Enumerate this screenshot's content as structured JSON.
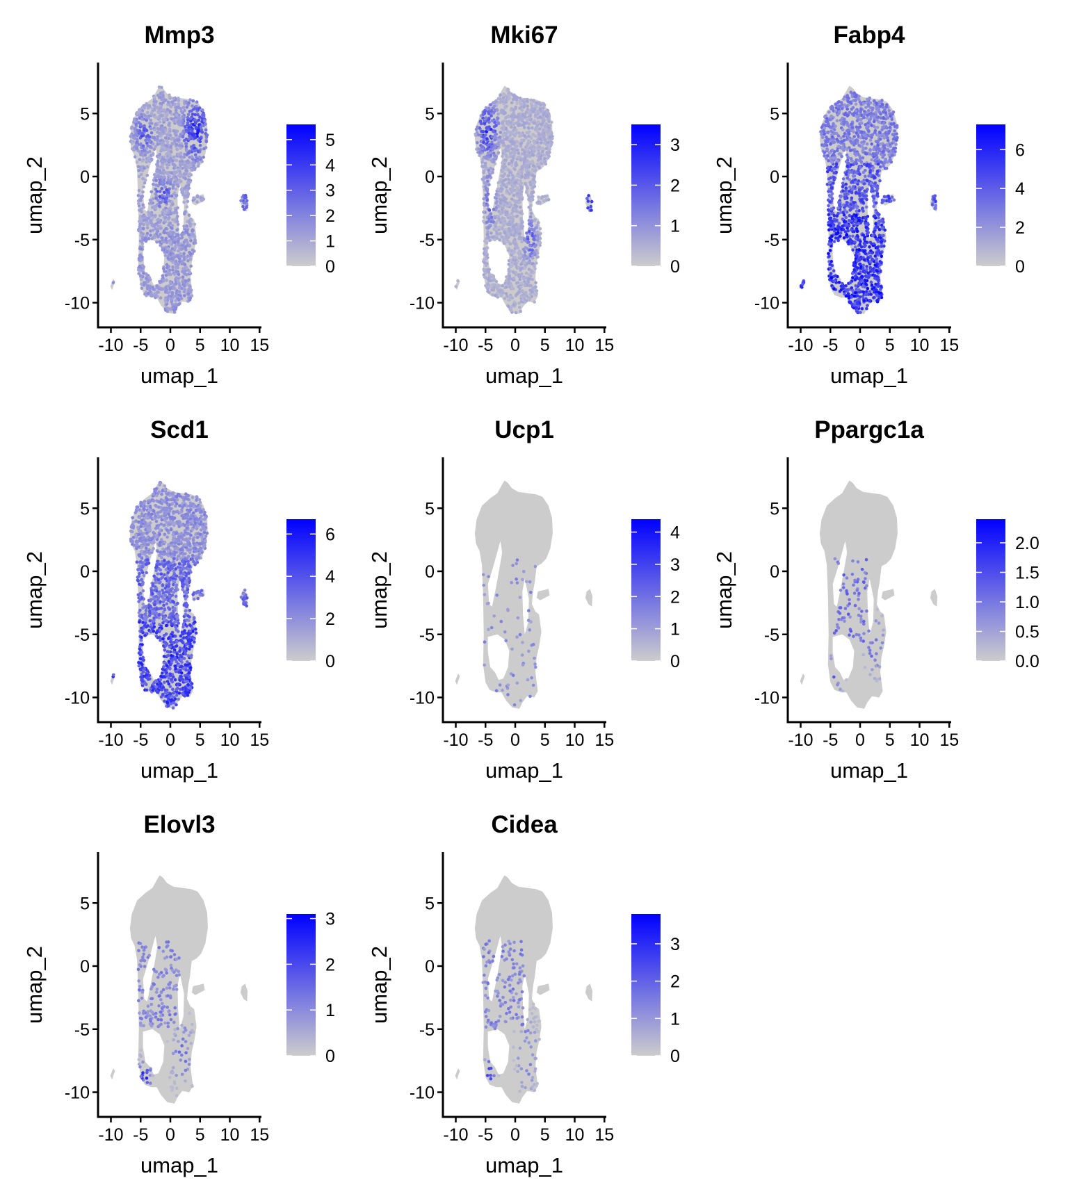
{
  "chart_data": [
    {
      "type": "scatter",
      "title": "Mmp3",
      "xlabel": "umap_1",
      "ylabel": "umap_2",
      "xlim": [
        -12,
        15.5
      ],
      "ylim": [
        -12,
        9
      ],
      "xticks": [
        -10,
        -5,
        0,
        5,
        10,
        15
      ],
      "yticks": [
        -10,
        -5,
        0,
        5
      ],
      "legend": {
        "min": 0,
        "max": 5.6,
        "ticks": [
          0,
          1,
          2,
          3,
          4,
          5
        ],
        "tick_labels": [
          "0",
          "1",
          "2",
          "3",
          "4",
          "5"
        ],
        "position": "right"
      },
      "expression_regions": [
        {
          "region": "top-right lobe (x 1..6, y 1..7)",
          "level": 0.85
        },
        {
          "region": "top-left lobe (x -6..-2, y 2..6)",
          "level": 0.6
        },
        {
          "region": "middle (x -3..1, y -3..0)",
          "level": 0.6
        },
        {
          "region": "lower body (y -10..-4)",
          "level": 0.3
        },
        {
          "region": "satellite cluster (x 12, y -2)",
          "level": 0.5
        }
      ],
      "background": 0.25
    },
    {
      "type": "scatter",
      "title": "Mki67",
      "xlabel": "umap_1",
      "ylabel": "umap_2",
      "xlim": [
        -12,
        15.5
      ],
      "ylim": [
        -12,
        9
      ],
      "xticks": [
        -10,
        -5,
        0,
        5,
        10,
        15
      ],
      "yticks": [
        -10,
        -5,
        0,
        5
      ],
      "legend": {
        "min": 0,
        "max": 3.5,
        "ticks": [
          0,
          1,
          2,
          3
        ],
        "tick_labels": [
          "0",
          "1",
          "2",
          "3"
        ],
        "position": "right"
      },
      "expression_regions": [
        {
          "region": "top-left lobe (x -6..-2, y 1..6)",
          "level": 0.8
        },
        {
          "region": "left ridge (x -5..-3, y -5..1)",
          "level": 0.55
        },
        {
          "region": "lower right arm (x 1..4, y -7..-3)",
          "level": 0.55
        },
        {
          "region": "satellite cluster (x 12, y -2)",
          "level": 0.7
        }
      ],
      "background": 0.18
    },
    {
      "type": "scatter",
      "title": "Fabp4",
      "xlabel": "umap_1",
      "ylabel": "umap_2",
      "xlim": [
        -12,
        15.5
      ],
      "ylim": [
        -12,
        9
      ],
      "xticks": [
        -10,
        -5,
        0,
        5,
        10,
        15
      ],
      "yticks": [
        -10,
        -5,
        0,
        5
      ],
      "legend": {
        "min": 0,
        "max": 7.3,
        "ticks": [
          0,
          2,
          4,
          6
        ],
        "tick_labels": [
          "0",
          "2",
          "4",
          "6"
        ],
        "position": "right"
      },
      "expression_regions": [
        {
          "region": "lower body (y -11..-3)",
          "level": 0.85
        },
        {
          "region": "middle (y -3..1)",
          "level": 0.65
        },
        {
          "region": "top lobe (y 1..7)",
          "level": 0.4
        },
        {
          "region": "satellite cluster (x 12, y -2)",
          "level": 0.4
        }
      ],
      "background": 0.45
    },
    {
      "type": "scatter",
      "title": "Scd1",
      "xlabel": "umap_1",
      "ylabel": "umap_2",
      "xlim": [
        -12,
        15.5
      ],
      "ylim": [
        -12,
        9
      ],
      "xticks": [
        -10,
        -5,
        0,
        5,
        10,
        15
      ],
      "yticks": [
        -10,
        -5,
        0,
        5
      ],
      "legend": {
        "min": 0,
        "max": 6.7,
        "ticks": [
          0,
          2,
          4,
          6
        ],
        "tick_labels": [
          "0",
          "2",
          "4",
          "6"
        ],
        "position": "right"
      },
      "expression_regions": [
        {
          "region": "lower body (y -11..-4)",
          "level": 0.75
        },
        {
          "region": "middle (y -4..1)",
          "level": 0.55
        },
        {
          "region": "top lobe (y 1..7)",
          "level": 0.35
        },
        {
          "region": "satellite cluster (x 12, y -2)",
          "level": 0.3
        }
      ],
      "background": 0.35
    },
    {
      "type": "scatter",
      "title": "Ucp1",
      "xlabel": "umap_1",
      "ylabel": "umap_2",
      "xlim": [
        -12,
        15.5
      ],
      "ylim": [
        -12,
        9
      ],
      "xticks": [
        -10,
        -5,
        0,
        5,
        10,
        15
      ],
      "yticks": [
        -10,
        -5,
        0,
        5
      ],
      "legend": {
        "min": 0,
        "max": 4.4,
        "ticks": [
          0,
          1,
          2,
          3,
          4
        ],
        "tick_labels": [
          "0",
          "1",
          "2",
          "3",
          "4"
        ],
        "position": "right"
      },
      "expression_regions": [
        {
          "region": "sparse middle/lower (x -5..3, y -10..1)",
          "level": 0.35
        },
        {
          "region": "bottom-left tip (x -4, y -9)",
          "level": 0.9
        }
      ],
      "background": 0.0
    },
    {
      "type": "scatter",
      "title": "Ppargc1a",
      "xlabel": "umap_1",
      "ylabel": "umap_2",
      "xlim": [
        -12,
        15.5
      ],
      "ylim": [
        -12,
        9
      ],
      "xticks": [
        -10,
        -5,
        0,
        5,
        10,
        15
      ],
      "yticks": [
        -10,
        -5,
        0,
        5
      ],
      "legend": {
        "min": 0,
        "max": 2.4,
        "ticks": [
          0,
          0.5,
          1,
          1.5,
          2
        ],
        "tick_labels": [
          "0.0",
          "0.5",
          "1.0",
          "1.5",
          "2.0"
        ],
        "position": "right"
      },
      "expression_regions": [
        {
          "region": "middle (x -4..1, y -6..1)",
          "level": 0.5
        },
        {
          "region": "lower left (x -5..-3, y -10..-6)",
          "level": 0.6
        },
        {
          "region": "lower right arm (x 1..4, y -8..-4)",
          "level": 0.55
        }
      ],
      "background": 0.0
    },
    {
      "type": "scatter",
      "title": "Elovl3",
      "xlabel": "umap_1",
      "ylabel": "umap_2",
      "xlim": [
        -12,
        15.5
      ],
      "ylim": [
        -12,
        9
      ],
      "xticks": [
        -10,
        -5,
        0,
        5,
        10,
        15
      ],
      "yticks": [
        -10,
        -5,
        0,
        5
      ],
      "legend": {
        "min": 0,
        "max": 3.1,
        "ticks": [
          0,
          1,
          2,
          3
        ],
        "tick_labels": [
          "0",
          "1",
          "2",
          "3"
        ],
        "position": "right"
      },
      "expression_regions": [
        {
          "region": "middle (x -5..1, y -5..2)",
          "level": 0.4
        },
        {
          "region": "bottom-left tip (x -5..-3, y -10..-7)",
          "level": 0.85
        },
        {
          "region": "lower right arm (x 0..4, y -10..-4)",
          "level": 0.5
        }
      ],
      "background": 0.0
    },
    {
      "type": "scatter",
      "title": "Cidea",
      "xlabel": "umap_1",
      "ylabel": "umap_2",
      "xlim": [
        -12,
        15.5
      ],
      "ylim": [
        -12,
        9
      ],
      "xticks": [
        -10,
        -5,
        0,
        5,
        10,
        15
      ],
      "yticks": [
        -10,
        -5,
        0,
        5
      ],
      "legend": {
        "min": 0,
        "max": 3.8,
        "ticks": [
          0,
          1,
          2,
          3
        ],
        "tick_labels": [
          "0",
          "1",
          "2",
          "3"
        ],
        "position": "right"
      },
      "expression_regions": [
        {
          "region": "middle (x -5..1, y -5..2)",
          "level": 0.4
        },
        {
          "region": "bottom-left tip (x -5..-3, y -10..-7)",
          "level": 0.85
        },
        {
          "region": "lower right arm (x 0..4, y -10..-4)",
          "level": 0.5
        }
      ],
      "background": 0.0
    }
  ],
  "colors": {
    "low": "#cccccc",
    "high": "#0000ff",
    "axis": "#000000",
    "text": "#000000"
  }
}
